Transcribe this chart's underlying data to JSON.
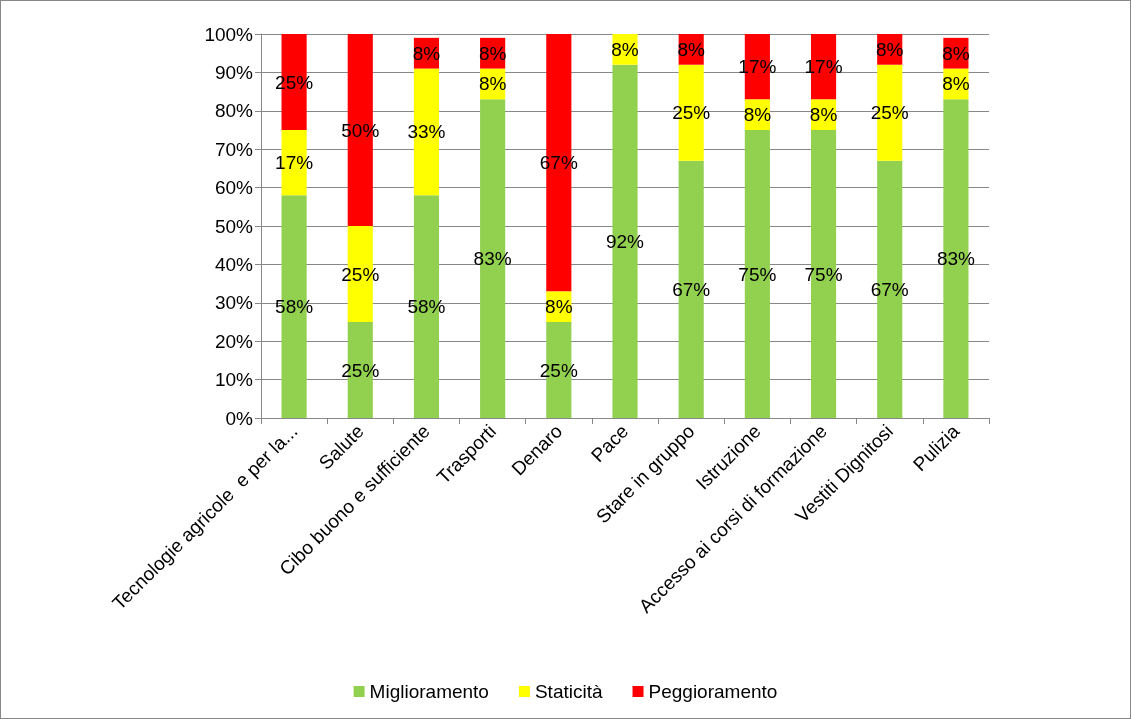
{
  "chart_data": {
    "type": "bar",
    "stacked": true,
    "categories": [
      "Tecnologie agricole  e per la...",
      "Salute",
      "Cibo buono e sufficiente",
      "Trasporti",
      "Denaro",
      "Pace",
      "Stare in gruppo",
      "Istruzione",
      "Accesso ai corsi di formazione",
      "Vestiti Dignitosi",
      "Pulizia"
    ],
    "series": [
      {
        "name": "Miglioramento",
        "color": "#92d050",
        "values": [
          58,
          25,
          58,
          83,
          25,
          92,
          67,
          75,
          75,
          67,
          83
        ],
        "value_labels": [
          "58%",
          "25%",
          "58%",
          "83%",
          "25%",
          "92%",
          "67%",
          "75%",
          "75%",
          "67%",
          "83%"
        ]
      },
      {
        "name": "Staticità",
        "color": "#ffff00",
        "values": [
          17,
          25,
          33,
          8,
          8,
          8,
          25,
          8,
          8,
          25,
          8
        ],
        "value_labels": [
          "17%",
          "25%",
          "33%",
          "8%",
          "8%",
          "8%",
          "25%",
          "8%",
          "8%",
          "25%",
          "8%"
        ]
      },
      {
        "name": "Peggioramento",
        "color": "#ff0000",
        "values": [
          25,
          50,
          8,
          8,
          67,
          null,
          8,
          17,
          17,
          8,
          8
        ],
        "value_labels": [
          "25%",
          "50%",
          "8%",
          "8%",
          "67%",
          null,
          "8%",
          "17%",
          "17%",
          "8%",
          "8%"
        ]
      }
    ],
    "ylim": [
      0,
      100
    ],
    "yticks": [
      {
        "value": 0,
        "label": "0%"
      },
      {
        "value": 10,
        "label": "10%"
      },
      {
        "value": 20,
        "label": "20%"
      },
      {
        "value": 30,
        "label": "30%"
      },
      {
        "value": 40,
        "label": "40%"
      },
      {
        "value": 50,
        "label": "50%"
      },
      {
        "value": 60,
        "label": "60%"
      },
      {
        "value": 70,
        "label": "70%"
      },
      {
        "value": 80,
        "label": "80%"
      },
      {
        "value": 90,
        "label": "90%"
      },
      {
        "value": 100,
        "label": "100%"
      }
    ],
    "grid": "y",
    "legend": "bottom"
  }
}
